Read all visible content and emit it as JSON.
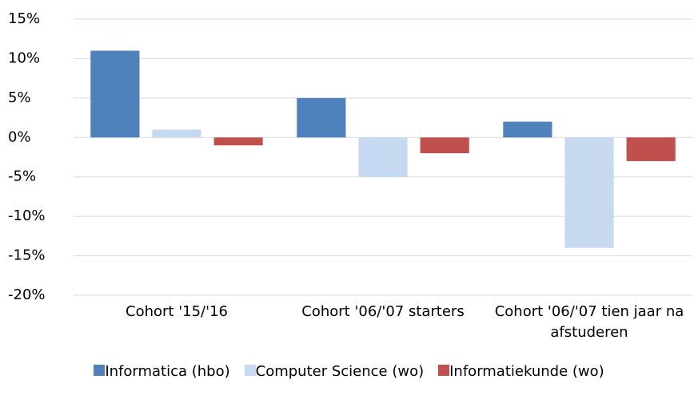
{
  "chart_data": {
    "type": "bar",
    "categories": [
      "Cohort '15/'16",
      "Cohort '06/'07 starters",
      "Cohort '06/'07 tien jaar na afstuderen"
    ],
    "series": [
      {
        "name": "Informatica (hbo)",
        "color": "#4f81bd",
        "values": [
          11,
          5,
          2
        ]
      },
      {
        "name": "Computer Science (wo)",
        "color": "#c6d9f1",
        "values": [
          1,
          -5,
          -14
        ]
      },
      {
        "name": "Informatiekunde (wo)",
        "color": "#c0504d",
        "values": [
          -1,
          -2,
          -3
        ]
      }
    ],
    "ylim": [
      -20,
      15
    ],
    "yticks": [
      {
        "value": -20,
        "label": "-20%"
      },
      {
        "value": -15,
        "label": "-15%"
      },
      {
        "value": -10,
        "label": "-10%"
      },
      {
        "value": -5,
        "label": "-5%"
      },
      {
        "value": 0,
        "label": "0%"
      },
      {
        "value": 5,
        "label": "5%"
      },
      {
        "value": 10,
        "label": "10%"
      },
      {
        "value": 15,
        "label": "15%"
      }
    ],
    "grid": true,
    "legend": "bottom"
  }
}
